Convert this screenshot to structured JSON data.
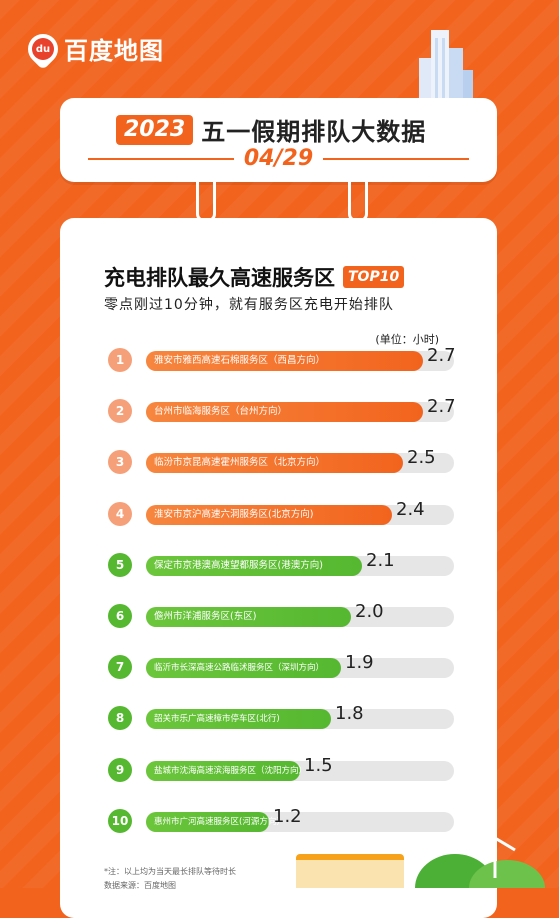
{
  "brand": {
    "name": "百度地图",
    "mark": "du"
  },
  "header": {
    "year": "2023",
    "title": "五一假期排队大数据",
    "date": "04/29"
  },
  "main": {
    "title": "充电排队最久高速服务区",
    "badge": "TOP10",
    "subtitle": "零点刚过10分钟，就有服务区充电开始排队",
    "unit": "(单位：小时)"
  },
  "colors": {
    "orange": "#f2641e",
    "orange_light": "#f6a07a",
    "green": "#55b830",
    "track": "#e6e6e6"
  },
  "chart_data": {
    "type": "bar",
    "orientation": "horizontal",
    "title": "充电排队最久高速服务区",
    "unit": "小时",
    "xlim": [
      0,
      3.0
    ],
    "categories": [
      "雅安市雅西高速石棉服务区（西昌方向）",
      "台州市临海服务区（台州方向）",
      "临汾市京昆高速霍州服务区（北京方向）",
      "淮安市京沪高速六洞服务区(北京方向)",
      "保定市京港澳高速望都服务区(港澳方向)",
      "儋州市洋浦服务区(东区)",
      "临沂市长深高速公路临沭服务区（深圳方向）",
      "韶关市乐广高速樟市停车区(北行)",
      "盐城市沈海高速滨海服务区（沈阳方向）",
      "惠州市广河高速服务区(河源方向)"
    ],
    "ranks": [
      "1",
      "2",
      "3",
      "4",
      "5",
      "6",
      "7",
      "8",
      "9",
      "10"
    ],
    "values": [
      2.7,
      2.7,
      2.5,
      2.4,
      2.1,
      2.0,
      1.9,
      1.8,
      1.5,
      1.2
    ],
    "value_labels": [
      "2.7",
      "2.7",
      "2.5",
      "2.4",
      "2.1",
      "2.0",
      "1.9",
      "1.8",
      "1.5",
      "1.2"
    ]
  },
  "notes": {
    "line1": "*注：以上均为当天最长排队等待时长",
    "line2": "数据来源：百度地图"
  }
}
